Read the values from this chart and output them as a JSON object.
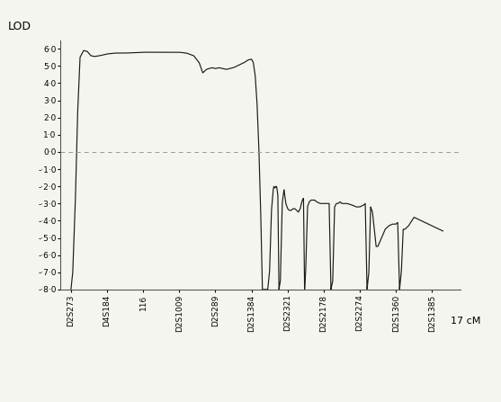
{
  "ylabel": "LOD",
  "xlabel_right": "17 cM",
  "ylim": [
    -8.0,
    6.5
  ],
  "yticks": [
    6.0,
    5.0,
    4.0,
    3.0,
    2.0,
    1.0,
    0.0,
    -1.0,
    -2.0,
    -3.0,
    -4.0,
    -5.0,
    -6.0,
    -7.0,
    -8.0
  ],
  "ytick_labels": [
    "6·0",
    "5·0",
    "4·0",
    "3·0",
    "2·0",
    "1·0",
    "0·0",
    "-·1·0",
    "-·2·0",
    "-·3·0",
    "-·4·0",
    "-·5·0",
    "-·6·0",
    "-·7·0",
    "-·8·0"
  ],
  "markers": [
    "D2S273",
    "D4S184",
    "116",
    "D2S1009",
    "D2S289",
    "D2S1384",
    "D2S2321",
    "D2S2178",
    "D2S2274",
    "D2S1360",
    "D2S1385"
  ],
  "marker_positions": [
    0,
    1,
    2,
    3,
    4,
    5,
    6,
    7,
    8,
    9,
    10
  ],
  "line_color": "#1a1a1a",
  "background_color": "#f5f5f0",
  "zero_line_color": "#999999",
  "zero_line_style": "--"
}
